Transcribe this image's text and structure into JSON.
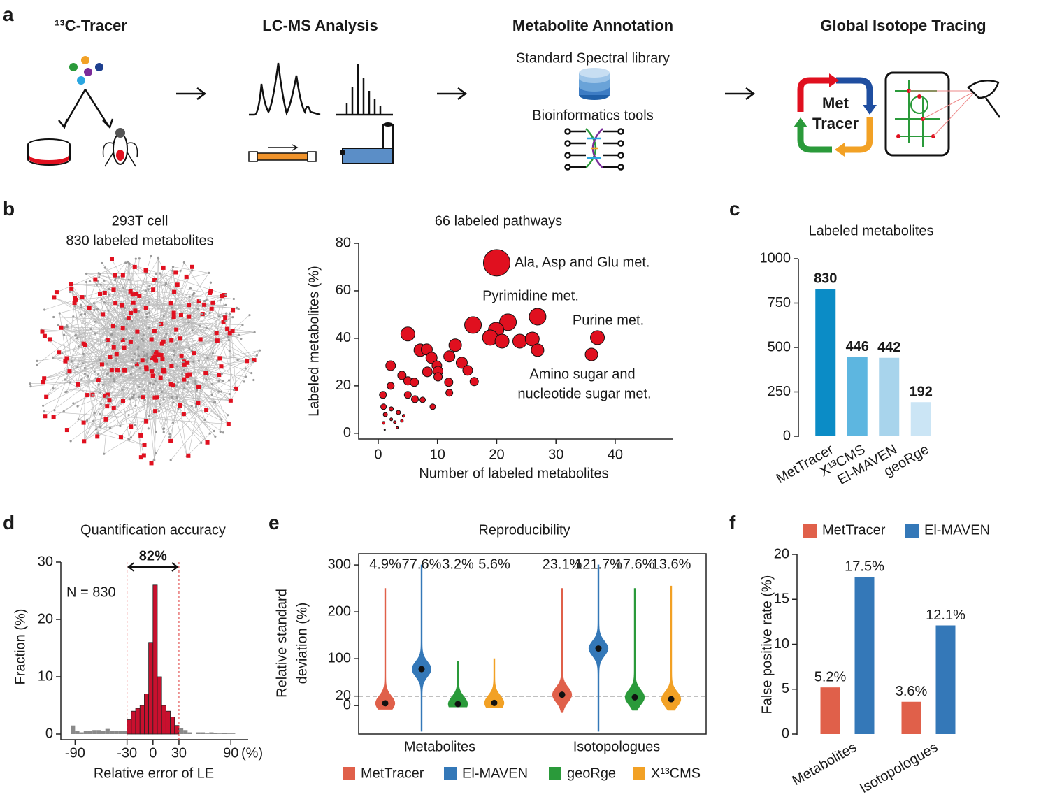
{
  "panels": [
    "a",
    "b",
    "c",
    "d",
    "e",
    "f"
  ],
  "workflow": {
    "steps": [
      "¹³C-Tracer",
      "LC-MS Analysis",
      "Metabolite Annotation",
      "Global Isotope Tracing"
    ],
    "notes": [
      "Standard Spectral library",
      "Bioinformatics tools"
    ],
    "logo": [
      "Met",
      "Tracer"
    ]
  },
  "network": {
    "title": [
      "293T cell",
      "830 labeled metabolites"
    ]
  },
  "chart_data": [
    {
      "type": "scatter",
      "title": "66 labeled pathways",
      "xlabel": "Number of labeled metabolites",
      "ylabel": "Labeled metabolites (%)",
      "color": "#e0101f",
      "x": [
        20,
        26.9,
        21.9,
        16,
        19.9,
        18.9,
        20.9,
        23.9,
        26,
        26.9,
        37,
        36,
        5,
        7.1,
        8.2,
        9,
        13,
        12,
        14.1,
        15.1,
        16.2,
        2.1,
        9.9,
        10.1,
        8.3,
        10.1,
        4,
        5,
        6.1,
        11.9,
        2.1,
        5,
        6.2,
        0.8,
        12,
        7.5,
        9.2,
        0.9,
        2.2,
        3.4,
        4.3,
        1.2,
        2.2,
        2.8,
        4,
        0.9,
        3.2,
        1.1
      ],
      "values": [
        71.8,
        49.1,
        46.8,
        45.6,
        43.5,
        40.3,
        38.8,
        38.8,
        39.7,
        35,
        40.3,
        33.2,
        41.8,
        35,
        35.3,
        31.8,
        37.1,
        32.4,
        29.7,
        26.5,
        21.8,
        28.5,
        28.5,
        26.2,
        25.9,
        23.8,
        24.4,
        22.1,
        21.5,
        21.5,
        20,
        16.2,
        14.4,
        16.2,
        17.1,
        14.1,
        11.2,
        11.2,
        10.3,
        8.8,
        7.4,
        7.9,
        5.9,
        4.7,
        5.3,
        4.4,
        2.4,
        1.5
      ],
      "sizes": [
        19,
        12,
        12,
        12,
        11,
        11,
        10,
        10,
        10,
        9,
        10,
        9,
        10,
        9,
        8,
        8,
        9,
        8,
        8,
        7,
        6,
        7,
        7,
        7,
        7,
        6,
        6,
        6,
        6,
        6,
        5,
        5,
        5,
        5,
        5,
        4,
        4,
        4,
        3,
        3,
        2,
        3,
        2,
        2,
        2,
        2,
        1.5,
        1
      ],
      "xlim": [
        -3.3,
        49.8
      ],
      "ylim": [
        -2.4,
        80
      ],
      "xticks": [
        0,
        10,
        20,
        30,
        40
      ],
      "yticks": [
        0,
        20,
        40,
        60,
        80
      ],
      "annotations": [
        "Ala, Asp and Glu met.",
        "Pyrimidine met.",
        "Purine met.",
        "Amino sugar and",
        "nucleotide sugar met."
      ]
    },
    {
      "type": "bar",
      "title": "Labeled metabolites",
      "categories": [
        "MetTracer",
        "X¹³CMS",
        "El-MAVEN",
        "geoRge"
      ],
      "values": [
        830,
        446,
        442,
        192
      ],
      "colors": [
        "#0b8cc6",
        "#5db6e0",
        "#a8d4ec",
        "#cbe5f5"
      ],
      "ylim": [
        0,
        1000
      ],
      "yticks": [
        0,
        250,
        500,
        750,
        1000
      ]
    },
    {
      "type": "histogram",
      "title": "Quantification accuracy",
      "xlabel": "Relative error of LE",
      "ylabel": "Fraction (%)",
      "x_unit": "(%)",
      "annotation": "N = 830",
      "range_label": "82%",
      "bins": [
        -100,
        -95,
        -90,
        -85,
        -80,
        -75,
        -70,
        -65,
        -60,
        -55,
        -50,
        -45,
        -40,
        -35,
        -30,
        -25,
        -20,
        -15,
        -10,
        -5,
        0,
        5,
        10,
        15,
        20,
        25,
        30,
        35,
        40,
        45,
        50,
        55,
        60,
        65,
        70,
        75,
        80,
        85,
        90,
        95,
        100,
        105,
        110
      ],
      "counts": [
        0,
        1.5,
        0.5,
        0.3,
        0.5,
        0.5,
        0.7,
        0.7,
        0.5,
        0.9,
        0.6,
        0.5,
        0.5,
        0.5,
        2.5,
        4,
        4.5,
        5,
        7,
        16,
        26,
        10,
        5,
        4,
        3,
        1.5,
        1,
        0.7,
        0.3,
        0,
        0.3,
        0.3,
        0.1,
        0.3,
        0.2,
        0.1,
        0.2,
        0.1,
        0.1,
        0,
        0,
        0
      ],
      "color": "#c8102e",
      "outside_color": "#8a8a8a",
      "ref_lines": [
        -30,
        30
      ],
      "xlim": [
        -100,
        110
      ],
      "ylim": [
        0,
        30
      ],
      "xticks": [
        -90,
        -30,
        0,
        30,
        90
      ],
      "yticks": [
        0,
        10,
        20,
        30
      ]
    },
    {
      "type": "violin",
      "title": "Reproducibility",
      "ylabel": [
        "Relative standard",
        "deviation (%)"
      ],
      "categories": [
        "Metabolites",
        "Isotopologues"
      ],
      "ref_line": 20,
      "ylim": [
        -61,
        324
      ],
      "yticks": [
        0,
        20,
        100,
        200,
        300
      ],
      "series": [
        {
          "name": "MetTracer",
          "color": "#e0604a",
          "values": [
            4.9,
            23.1
          ],
          "value_labels": [
            "4.9%",
            "23.1%"
          ],
          "min": [
            -8,
            -15
          ],
          "max": [
            250,
            250
          ]
        },
        {
          "name": "El-MAVEN",
          "color": "#3478b8",
          "values": [
            77.6,
            121.7
          ],
          "value_labels": [
            "77.6%",
            "121.7%"
          ],
          "min": [
            -55,
            -55
          ],
          "max": [
            300,
            300
          ]
        },
        {
          "name": "geoRge",
          "color": "#2a9a3a",
          "values": [
            3.2,
            17.6
          ],
          "value_labels": [
            "3.2%",
            "17.6%"
          ],
          "min": [
            -3,
            -10
          ],
          "max": [
            95,
            250
          ]
        },
        {
          "name": "X¹³CMS",
          "color": "#f2a125",
          "values": [
            5.6,
            13.6
          ],
          "value_labels": [
            "5.6%",
            "13.6%"
          ],
          "min": [
            -5,
            -10
          ],
          "max": [
            100,
            255
          ]
        }
      ]
    },
    {
      "type": "grouped_bar",
      "ylabel": "False positive rate (%)",
      "categories": [
        "Metabolites",
        "Isotopologues"
      ],
      "ylim": [
        0,
        20
      ],
      "yticks": [
        0,
        5,
        10,
        15,
        20
      ],
      "series": [
        {
          "name": "MetTracer",
          "color": "#e0604a",
          "values": [
            5.2,
            3.6
          ],
          "value_labels": [
            "5.2%",
            "3.6%"
          ]
        },
        {
          "name": "El-MAVEN",
          "color": "#3478b8",
          "values": [
            17.5,
            12.1
          ],
          "value_labels": [
            "17.5%",
            "12.1%"
          ]
        }
      ]
    }
  ]
}
